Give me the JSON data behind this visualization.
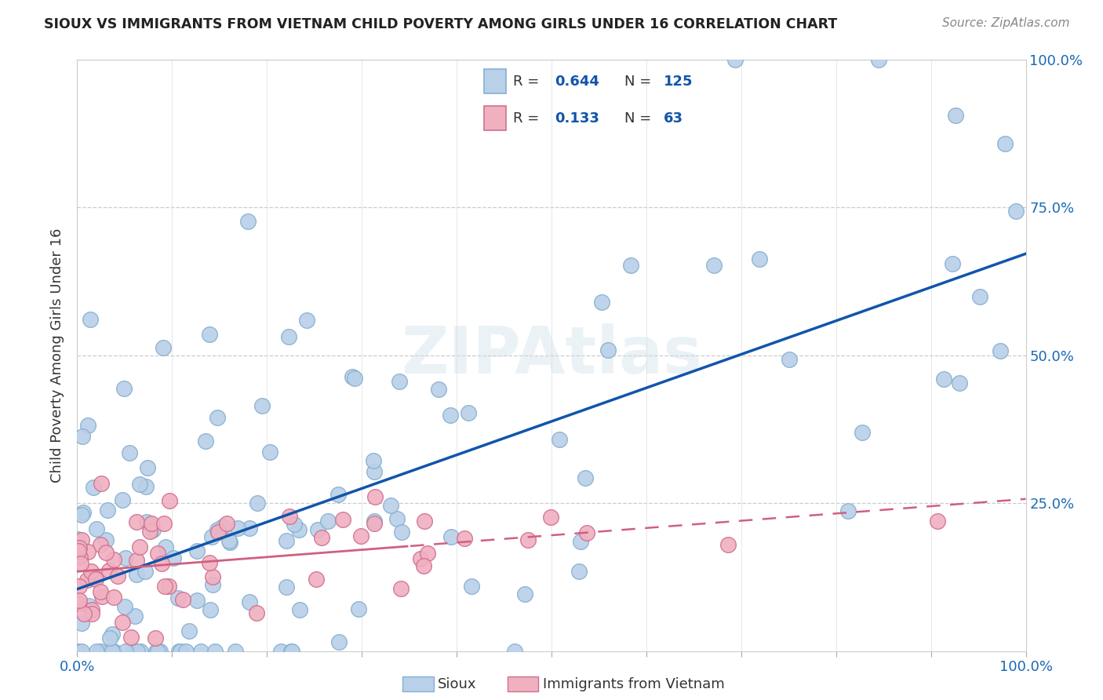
{
  "title": "SIOUX VS IMMIGRANTS FROM VIETNAM CHILD POVERTY AMONG GIRLS UNDER 16 CORRELATION CHART",
  "source": "Source: ZipAtlas.com",
  "ylabel": "Child Poverty Among Girls Under 16",
  "background_color": "#ffffff",
  "sioux_color": "#b8d0e8",
  "sioux_edge_color": "#88b0d0",
  "vietnam_color": "#f0b0c0",
  "vietnam_edge_color": "#d07090",
  "sioux_line_color": "#1155aa",
  "vietnam_line_color": "#d06080",
  "sioux_R": 0.644,
  "sioux_N": 125,
  "vietnam_R": 0.133,
  "vietnam_N": 63,
  "right_ytick_labels": [
    "",
    "25.0%",
    "50.0%",
    "75.0%",
    "100.0%"
  ],
  "xticklabels_left": "0.0%",
  "xticklabels_right": "100.0%"
}
